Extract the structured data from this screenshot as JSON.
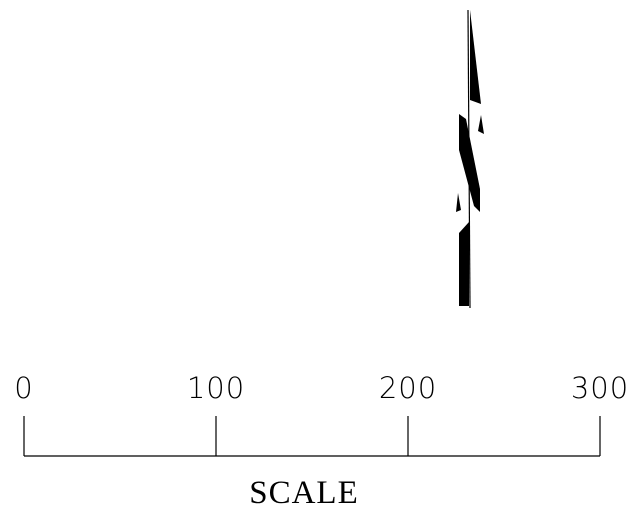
{
  "north_arrow": {
    "icon": "north-arrow-icon",
    "color": "#000000"
  },
  "scale_bar": {
    "ticks": [
      {
        "value": 0,
        "label": "0"
      },
      {
        "value": 100,
        "label": "100"
      },
      {
        "value": 200,
        "label": "200"
      },
      {
        "value": 300,
        "label": "300"
      }
    ],
    "range": [
      0,
      300
    ],
    "title": "SCALE",
    "color": "#000000"
  }
}
